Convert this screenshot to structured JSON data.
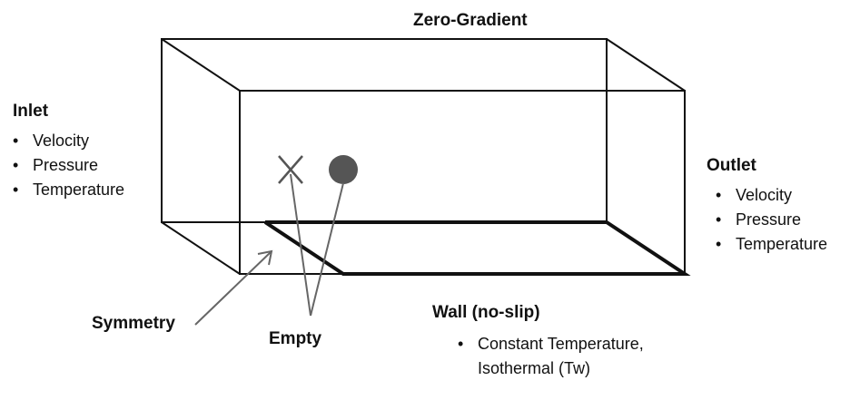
{
  "top": {
    "title": "Zero-Gradient"
  },
  "inlet": {
    "title": "Inlet",
    "items": [
      "Velocity",
      "Pressure",
      "Temperature"
    ]
  },
  "outlet": {
    "title": "Outlet",
    "items": [
      "Velocity",
      "Pressure",
      "Temperature"
    ]
  },
  "symmetry": {
    "title": "Symmetry"
  },
  "empty": {
    "title": "Empty"
  },
  "wall": {
    "title": "Wall (no-slip)",
    "items": [
      "Constant Temperature,",
      "Isothermal (Tw)"
    ]
  },
  "colors": {
    "line": "#111111",
    "marker": "#555555",
    "arrow": "#666666"
  },
  "icons": {
    "empty_front": "cross-marker-icon",
    "empty_back": "dot-marker-icon",
    "bullet": "bullet-icon"
  }
}
